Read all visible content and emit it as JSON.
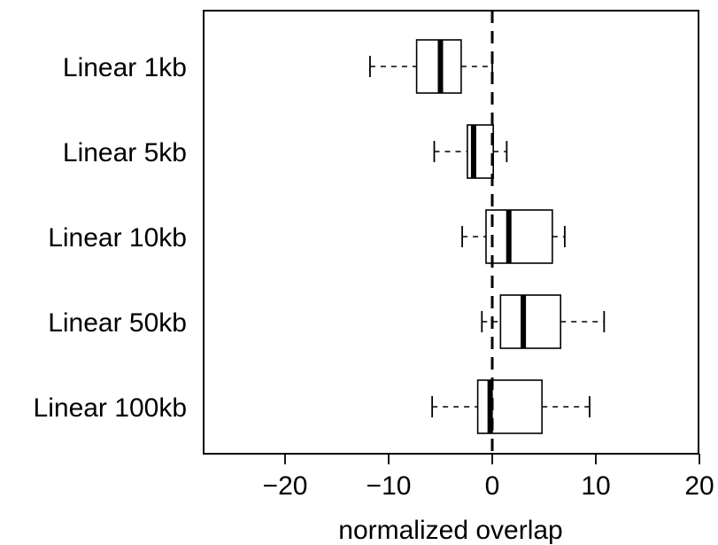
{
  "chart_data": {
    "type": "boxplot",
    "orientation": "horizontal",
    "title": "",
    "xlabel": "normalized overlap",
    "ylabel": "",
    "xlim": [
      -28,
      20.5
    ],
    "xticks": [
      -20,
      -10,
      0,
      10,
      20
    ],
    "xtick_labels": [
      "−20",
      "−10",
      "0",
      "10",
      "20"
    ],
    "reference_line": {
      "x": 0,
      "style": "dashed"
    },
    "grid": false,
    "legend": "none",
    "categories": [
      "Linear 1kb",
      "Linear 5kb",
      "Linear 10kb",
      "Linear 50kb",
      "Linear 100kb"
    ],
    "boxes": [
      {
        "label": "Linear 1kb",
        "whisker_low": -11.8,
        "q1": -7.3,
        "median": -5.0,
        "q3": -3.0,
        "whisker_high": 0.0
      },
      {
        "label": "Linear 5kb",
        "whisker_low": -5.6,
        "q1": -2.4,
        "median": -1.8,
        "q3": 0.1,
        "whisker_high": 1.4
      },
      {
        "label": "Linear 10kb",
        "whisker_low": -2.9,
        "q1": -0.6,
        "median": 1.6,
        "q3": 5.8,
        "whisker_high": 7.0
      },
      {
        "label": "Linear 50kb",
        "whisker_low": -1.0,
        "q1": 0.8,
        "median": 3.0,
        "q3": 6.6,
        "whisker_high": 10.8
      },
      {
        "label": "Linear 100kb",
        "whisker_low": -5.8,
        "q1": -1.4,
        "median": -0.2,
        "q3": 4.8,
        "whisker_high": 9.4
      }
    ]
  }
}
